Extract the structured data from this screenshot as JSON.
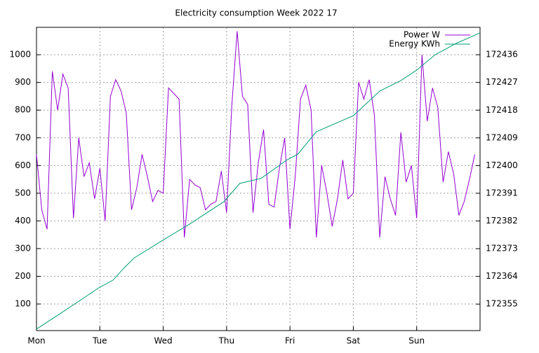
{
  "chart_data": {
    "type": "line",
    "title": "Electricity consumption Week 2022 17",
    "xlim": [
      0,
      168
    ],
    "xticks": [
      {
        "value": 0,
        "label": "Mon"
      },
      {
        "value": 24,
        "label": "Tue"
      },
      {
        "value": 48,
        "label": "Wed"
      },
      {
        "value": 72,
        "label": "Thu"
      },
      {
        "value": 96,
        "label": "Fri"
      },
      {
        "value": 120,
        "label": "Sat"
      },
      {
        "value": 144,
        "label": "Sun"
      }
    ],
    "ylim": [
      4,
      1099
    ],
    "yticks": [
      100,
      200,
      300,
      400,
      500,
      600,
      700,
      800,
      900,
      1000
    ],
    "y2lim": [
      172346.4,
      172444.9
    ],
    "y2ticks": [
      172355,
      172364,
      172373,
      172382,
      172391,
      172400,
      172409,
      172418,
      172427,
      172436
    ],
    "grid": true,
    "legend": "top-right",
    "series": [
      {
        "name": "Power W",
        "color": "#9400d3",
        "x": [
          0,
          2,
          4,
          6,
          8,
          10,
          12,
          14,
          16,
          18,
          20,
          22,
          24,
          26,
          28,
          30,
          32,
          34,
          36,
          38,
          40,
          42,
          44,
          46,
          48,
          50,
          52,
          54,
          56,
          58,
          60,
          62,
          64,
          66,
          68,
          70,
          72,
          74,
          76,
          78,
          80,
          82,
          84,
          86,
          88,
          90,
          92,
          94,
          96,
          98,
          100,
          102,
          104,
          106,
          108,
          110,
          112,
          114,
          116,
          118,
          120,
          122,
          124,
          126,
          128,
          130,
          132,
          134,
          136,
          138,
          140,
          142,
          144,
          146,
          148,
          150,
          152,
          154,
          156,
          158,
          160,
          162,
          164,
          166
        ],
        "values": [
          640,
          440,
          370,
          940,
          800,
          930,
          880,
          410,
          700,
          560,
          610,
          480,
          590,
          400,
          850,
          910,
          870,
          790,
          440,
          520,
          640,
          560,
          470,
          510,
          500,
          880,
          860,
          840,
          340,
          550,
          530,
          520,
          440,
          460,
          470,
          580,
          430,
          820,
          1085,
          850,
          820,
          430,
          610,
          730,
          460,
          450,
          590,
          700,
          370,
          560,
          840,
          890,
          800,
          340,
          600,
          500,
          380,
          480,
          620,
          480,
          500,
          900,
          840,
          910,
          780,
          340,
          560,
          480,
          420,
          720,
          540,
          600,
          410,
          1000,
          760,
          880,
          810,
          540,
          650,
          570,
          420,
          470,
          550,
          640
        ]
      },
      {
        "name": "Energy KWh",
        "color": "#009e73",
        "axis": "y2",
        "x": [
          0,
          10,
          24,
          29,
          33,
          37,
          47,
          58,
          71,
          77,
          85,
          95,
          99,
          106,
          120,
          130,
          138,
          144,
          151,
          159,
          168
        ],
        "values": [
          172346.9,
          172352.5,
          172360.5,
          172362.8,
          172366.6,
          172370.0,
          172375.3,
          172381.0,
          172388.3,
          172394.2,
          172395.8,
          172401.9,
          172403.7,
          172411.0,
          172416.2,
          172424.2,
          172427.6,
          172431.0,
          172436.0,
          172439.7,
          172443.1
        ]
      }
    ]
  }
}
